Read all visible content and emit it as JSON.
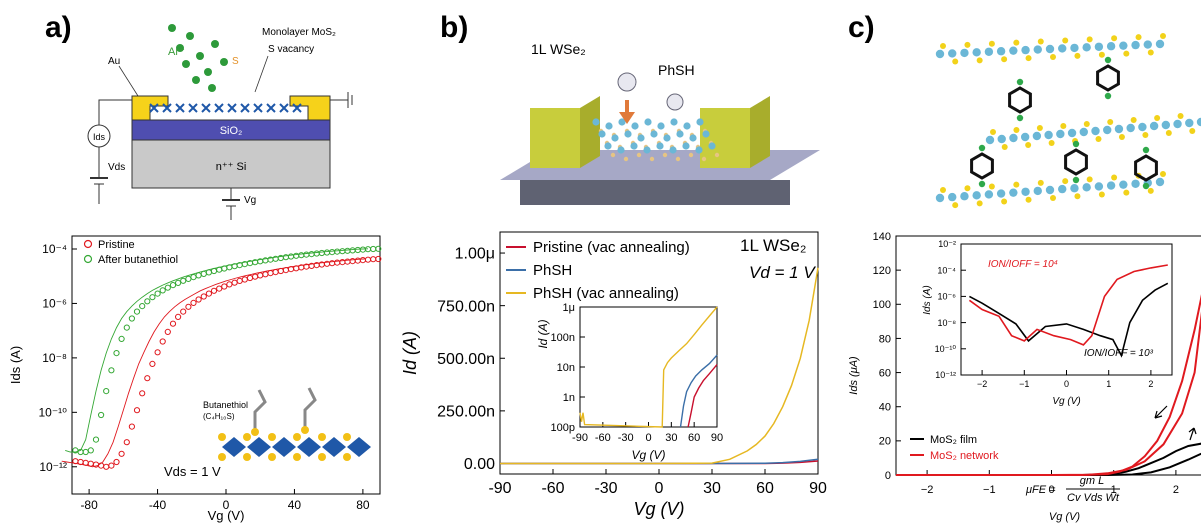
{
  "panels": [
    {
      "label": "a)",
      "schematic": {
        "ion_label": "Ar⁺",
        "material_label": "Monolayer MoS₂",
        "defect_label": "S vacancy",
        "sputter_label": "S",
        "electrode_label": "Au",
        "current_label": "Ids",
        "drain_label": "Vds",
        "oxide_label": "SiO₂",
        "substrate_label": "n⁺⁺ Si",
        "gate_label": "Vg"
      },
      "inset": {
        "molecule_label": "Butanethiol",
        "formula_label": "(C₄H₁₀S)"
      },
      "annotation": "Vds = 1 V"
    },
    {
      "label": "b)",
      "schematic": {
        "material_label": "1L WSe₂",
        "molecule_label": "PhSH"
      },
      "annotation_material": "1L WSe₂",
      "annotation_bias": "Vd = 1 V"
    },
    {
      "label": "c)",
      "equation": {
        "lhs": "μFE =",
        "numerator": "gm L",
        "denominator": "Cv Vds Wt"
      },
      "inset_annotations": {
        "ratio_network": "ION/IOFF = 10⁴",
        "ratio_film": "ION/IOFF = 10³"
      }
    }
  ],
  "chart_data": [
    {
      "type": "scatter",
      "panel": "a",
      "xlabel": "Vg (V)",
      "ylabel": "Ids (A)",
      "xlim": [
        -90,
        90
      ],
      "ylim": [
        1e-13,
        0.0003
      ],
      "yscale": "log",
      "x_ticks": [
        "-80",
        "-40",
        "0",
        "40",
        "80"
      ],
      "y_ticks": [
        "10⁻¹²",
        "10⁻¹⁰",
        "10⁻⁸",
        "10⁻⁶",
        "10⁻⁴"
      ],
      "legend_position": "top-left",
      "series": [
        {
          "name": "Pristine",
          "color": "#e0191f",
          "marker": "open-circle",
          "x": [
            -88,
            -85,
            -82,
            -79,
            -76,
            -73,
            -70,
            -67,
            -64,
            -61,
            -58,
            -55,
            -52,
            -49,
            -46,
            -43,
            -40,
            -37,
            -34,
            -31,
            -28,
            -25,
            -22,
            -19,
            -16,
            -13,
            -10,
            -7,
            -4,
            -1,
            2,
            5,
            8,
            11,
            14,
            17,
            20,
            23,
            26,
            29,
            32,
            35,
            38,
            41,
            44,
            47,
            50,
            53,
            56,
            59,
            62,
            65,
            68,
            71,
            74,
            77,
            80,
            83,
            86,
            89
          ],
          "y": [
            1.6e-12,
            1.5e-12,
            1.4e-12,
            1.3e-12,
            1.2e-12,
            1.1e-12,
            1e-12,
            1.1e-12,
            1.5e-12,
            3e-12,
            8e-12,
            3e-11,
            1.2e-10,
            5e-10,
            1.8e-09,
            6e-09,
            1.6e-08,
            4e-08,
            9e-08,
            1.8e-07,
            3.2e-07,
            5e-07,
            7.5e-07,
            1.05e-06,
            1.4e-06,
            1.8e-06,
            2.3e-06,
            2.9e-06,
            3.5e-06,
            4.2e-06,
            5e-06,
            5.8e-06,
            6.7e-06,
            7.6e-06,
            8.6e-06,
            9.6e-06,
            1.07e-05,
            1.18e-05,
            1.3e-05,
            1.42e-05,
            1.55e-05,
            1.68e-05,
            1.82e-05,
            1.96e-05,
            2.1e-05,
            2.25e-05,
            2.4e-05,
            2.55e-05,
            2.7e-05,
            2.85e-05,
            3e-05,
            3.15e-05,
            3.3e-05,
            3.45e-05,
            3.6e-05,
            3.75e-05,
            3.9e-05,
            4.05e-05,
            4.2e-05,
            4.3e-05
          ]
        },
        {
          "name": "After butanethiol",
          "color": "#35a835",
          "marker": "open-circle",
          "x": [
            -88,
            -85,
            -82,
            -79,
            -76,
            -73,
            -70,
            -67,
            -64,
            -61,
            -58,
            -55,
            -52,
            -49,
            -46,
            -43,
            -40,
            -37,
            -34,
            -31,
            -28,
            -25,
            -22,
            -19,
            -16,
            -13,
            -10,
            -7,
            -4,
            -1,
            2,
            5,
            8,
            11,
            14,
            17,
            20,
            23,
            26,
            29,
            32,
            35,
            38,
            41,
            44,
            47,
            50,
            53,
            56,
            59,
            62,
            65,
            68,
            71,
            74,
            77,
            80,
            83,
            86,
            89
          ],
          "y": [
            4e-12,
            3.5e-12,
            3.5e-12,
            4e-12,
            1e-11,
            8e-11,
            6e-10,
            3.5e-09,
            1.5e-08,
            5e-08,
            1.3e-07,
            2.8e-07,
            5e-07,
            8e-07,
            1.2e-06,
            1.7e-06,
            2.3e-06,
            3e-06,
            3.8e-06,
            4.7e-06,
            5.7e-06,
            6.8e-06,
            8e-06,
            9.3e-06,
            1.07e-05,
            1.22e-05,
            1.38e-05,
            1.55e-05,
            1.73e-05,
            1.92e-05,
            2.12e-05,
            2.33e-05,
            2.55e-05,
            2.78e-05,
            3.02e-05,
            3.27e-05,
            3.53e-05,
            3.8e-05,
            4.08e-05,
            4.37e-05,
            4.67e-05,
            4.98e-05,
            5.3e-05,
            5.6e-05,
            5.9e-05,
            6.2e-05,
            6.5e-05,
            6.8e-05,
            7.1e-05,
            7.4e-05,
            7.7e-05,
            8e-05,
            8.3e-05,
            8.6e-05,
            8.9e-05,
            9.2e-05,
            9.5e-05,
            9.8e-05,
            0.0001,
            0.000102
          ]
        }
      ]
    },
    {
      "type": "line",
      "panel": "b",
      "xlabel": "Vg (V)",
      "ylabel": "Id (A)",
      "xlim": [
        -90,
        90
      ],
      "ylim": [
        -5e-08,
        1.1e-06
      ],
      "x_ticks": [
        "-90",
        "-60",
        "-30",
        "0",
        "30",
        "60",
        "90"
      ],
      "y_ticks": [
        "0.00",
        "250.00n",
        "500.00n",
        "750.00n",
        "1.00μ"
      ],
      "legend_position": "top-left",
      "series": [
        {
          "name": "Pristine (vac annealing)",
          "color": "#c8102e",
          "x": [
            -90,
            -60,
            -30,
            0,
            30,
            60,
            70,
            80,
            90
          ],
          "y": [
            0,
            0,
            0,
            0,
            0,
            0,
            2e-09,
            5e-09,
            1.2e-08
          ]
        },
        {
          "name": "PhSH",
          "color": "#3b6fa8",
          "x": [
            -90,
            -60,
            -30,
            0,
            30,
            60,
            70,
            80,
            90
          ],
          "y": [
            0,
            0,
            0,
            0,
            0,
            1e-09,
            4e-09,
            1e-08,
            2e-08
          ]
        },
        {
          "name": "PhSH (vac annealing)",
          "color": "#e6b822",
          "x": [
            -90,
            -30,
            0,
            30,
            40,
            50,
            55,
            60,
            65,
            70,
            75,
            80,
            85,
            90
          ],
          "y": [
            0,
            0,
            0,
            2e-09,
            2e-08,
            6e-08,
            9e-08,
            1.3e-07,
            1.9e-07,
            2.7e-07,
            3.7e-07,
            5e-07,
            6.8e-07,
            9.3e-07
          ]
        }
      ],
      "inset": {
        "xlabel": "Vg (V)",
        "ylabel": "Id (A)",
        "xlim": [
          -90,
          90
        ],
        "yscale": "log",
        "ylim": [
          1e-10,
          1e-06
        ],
        "x_ticks": [
          "-90",
          "-60",
          "-30",
          "0",
          "30",
          "60",
          "90"
        ],
        "y_ticks": [
          "100p",
          "1n",
          "10n",
          "100n",
          "1μ"
        ],
        "series": [
          {
            "name": "Pristine (vac annealing)",
            "x": [
              52,
              56,
              60,
              66,
              72,
              80,
              90
            ],
            "y": [
              1e-10,
              3e-10,
              1e-09,
              2e-09,
              3.5e-09,
              6e-09,
              1.2e-08
            ]
          },
          {
            "name": "PhSH",
            "x": [
              42,
              46,
              50,
              56,
              62,
              70,
              80,
              90
            ],
            "y": [
              1e-10,
              5e-10,
              1.5e-09,
              3e-09,
              5e-09,
              8e-09,
              1.3e-08,
              2.5e-08
            ]
          },
          {
            "name": "PhSH (vac annealing)",
            "x": [
              -90,
              -88,
              -86,
              -84,
              18,
              20,
              25,
              30,
              40,
              50,
              60,
              70,
              80,
              90
            ],
            "y": [
              3e-10,
              1.5e-10,
              3e-10,
              1.2e-10,
              1e-10,
              8e-09,
              1.4e-08,
              2e-08,
              3.5e-08,
              6e-08,
              1.2e-07,
              2.5e-07,
              5e-07,
              1e-06
            ]
          }
        ]
      }
    },
    {
      "type": "line",
      "panel": "c",
      "xlabel": "Vg (V)",
      "ylabel": "Ids (μA)",
      "xlim": [
        -2.5,
        2.5
      ],
      "ylim": [
        0,
        140
      ],
      "x_ticks": [
        "−2",
        "−1",
        "0",
        "1",
        "2"
      ],
      "y_ticks": [
        "0",
        "20",
        "40",
        "60",
        "80",
        "100",
        "120",
        "140"
      ],
      "legend_position": "bottom-left",
      "series": [
        {
          "name": "MoS₂ film",
          "color": "#000000",
          "forward": {
            "x": [
              -2.5,
              0,
              0.9,
              1.3,
              1.6,
              1.9,
              2.2,
              2.5
            ],
            "y": [
              0,
              0,
              0,
              0.3,
              1.5,
              4.5,
              9,
              14
            ]
          },
          "reverse": {
            "x": [
              2.5,
              2.2,
              2.0,
              1.8,
              1.6,
              1.4,
              1.2,
              1.0,
              0.5,
              -2.5
            ],
            "y": [
              19,
              17,
              14,
              10,
              7,
              4,
              2,
              0.6,
              0,
              0
            ]
          }
        },
        {
          "name": "MoS₂ network",
          "color": "#e0191f",
          "forward": {
            "x": [
              -2.5,
              0,
              0.6,
              0.9,
              1.2,
              1.5,
              1.8,
              2.1,
              2.3,
              2.5
            ],
            "y": [
              0,
              0,
              0.2,
              1,
              3,
              8,
              18,
              36,
              60,
              120
            ]
          },
          "reverse": {
            "x": [
              2.5,
              2.3,
              2.1,
              1.9,
              1.7,
              1.5,
              1.3,
              1.1,
              0.9,
              0.5,
              -2.5
            ],
            "y": [
              120,
              85,
              55,
              34,
              20,
              11,
              5,
              2,
              0.5,
              0,
              0
            ]
          }
        }
      ],
      "inset": {
        "xlabel": "Vg (V)",
        "ylabel": "Ids (A)",
        "xlim": [
          -2.5,
          2.5
        ],
        "yscale": "log",
        "ylim": [
          1e-12,
          0.01
        ],
        "x_ticks": [
          "−2",
          "−1",
          "0",
          "1",
          "2"
        ],
        "y_ticks": [
          "10⁻¹²",
          "10⁻¹⁰",
          "10⁻⁸",
          "10⁻⁶",
          "10⁻⁴",
          "10⁻²"
        ],
        "series": [
          {
            "name": "MoS₂ film",
            "x": [
              -2.3,
              -2.0,
              -1.6,
              -1.2,
              -0.9,
              -0.5,
              0,
              0.4,
              0.8,
              1.1,
              1.3,
              1.5,
              1.8,
              2.1,
              2.4
            ],
            "y": [
              1e-06,
              3e-07,
              5e-08,
              8e-09,
              4e-10,
              5e-09,
              8e-09,
              3e-09,
              1e-09,
              5e-10,
              3e-11,
              1e-08,
              5e-07,
              3e-06,
              1e-05
            ]
          },
          {
            "name": "MoS₂ network",
            "x": [
              -2.3,
              -2.0,
              -1.6,
              -1.3,
              -1.0,
              -0.7,
              -0.3,
              0.1,
              0.4,
              0.6,
              0.9,
              1.2,
              1.6,
              2.0,
              2.4
            ],
            "y": [
              5e-07,
              1e-07,
              3e-08,
              1e-09,
              4e-10,
              3e-09,
              1e-09,
              5e-10,
              2e-10,
              1e-09,
              1e-06,
              2e-05,
              8e-05,
              0.00015,
              0.00025
            ]
          }
        ]
      }
    }
  ]
}
